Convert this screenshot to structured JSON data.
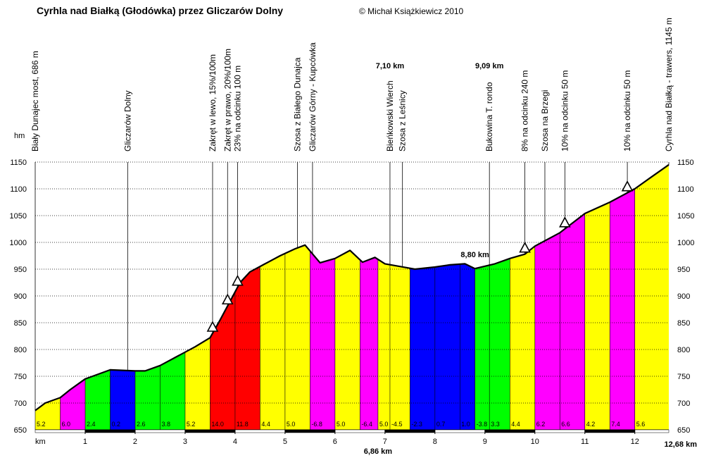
{
  "chart_data": {
    "type": "area",
    "title": "Cyrhla nad Białką (Głodówka) przez Gliczarów Dolny",
    "copyright": "© Michał Książkiewicz 2010",
    "ylabel": "hm",
    "xlabel": "km",
    "xlim": [
      0,
      12.68
    ],
    "ylim": [
      650,
      1150
    ],
    "yticks": [
      "650",
      "700",
      "750",
      "800",
      "850",
      "900",
      "950",
      "1000",
      "1050",
      "1100",
      "1150"
    ],
    "xticks": [
      "1",
      "2",
      "3",
      "4",
      "5",
      "6",
      "7",
      "8",
      "9",
      "10",
      "11",
      "12"
    ],
    "total_distance_label": "12,68 km",
    "profile_x": [
      0,
      0.2,
      0.5,
      0.7,
      1.0,
      1.5,
      2.0,
      2.2,
      2.5,
      2.8,
      3.2,
      3.5,
      3.7,
      3.9,
      4.1,
      4.3,
      4.6,
      4.9,
      5.2,
      5.4,
      5.7,
      6.0,
      6.3,
      6.55,
      6.8,
      7.0,
      7.3,
      7.6,
      8.0,
      8.3,
      8.6,
      8.8,
      9.2,
      9.5,
      9.8,
      10.0,
      10.5,
      11.0,
      11.5,
      12.0,
      12.3,
      12.68
    ],
    "profile_y": [
      686,
      700,
      710,
      725,
      745,
      762,
      760,
      760,
      770,
      785,
      805,
      822,
      855,
      890,
      925,
      945,
      960,
      975,
      988,
      995,
      962,
      970,
      985,
      963,
      972,
      960,
      955,
      950,
      954,
      958,
      960,
      951,
      960,
      970,
      978,
      993,
      1018,
      1054,
      1075,
      1100,
      1120,
      1145
    ],
    "segments": [
      {
        "start": 0,
        "end": 0.5,
        "color": "#ffff00",
        "grade": "5.2"
      },
      {
        "start": 0.5,
        "end": 1.0,
        "color": "#ff00ff",
        "grade": "6.0"
      },
      {
        "start": 1.0,
        "end": 1.5,
        "color": "#00ff00",
        "grade": "2.4"
      },
      {
        "start": 1.5,
        "end": 2.0,
        "color": "#0000ff",
        "grade": "0.2"
      },
      {
        "start": 2.0,
        "end": 2.5,
        "color": "#00ff00",
        "grade": "2.6"
      },
      {
        "start": 2.5,
        "end": 3.0,
        "color": "#00ff00",
        "grade": "3.8"
      },
      {
        "start": 3.0,
        "end": 3.5,
        "color": "#ffff00",
        "grade": "5.2"
      },
      {
        "start": 3.5,
        "end": 4.0,
        "color": "#ff0000",
        "grade": "14.0"
      },
      {
        "start": 4.0,
        "end": 4.5,
        "color": "#ff0000",
        "grade": "11.8"
      },
      {
        "start": 4.5,
        "end": 5.0,
        "color": "#ffff00",
        "grade": "4.4"
      },
      {
        "start": 5.0,
        "end": 5.5,
        "color": "#ffff00",
        "grade": "5.0"
      },
      {
        "start": 5.5,
        "end": 6.0,
        "color": "#ff00ff",
        "grade": "-6.8"
      },
      {
        "start": 6.0,
        "end": 6.5,
        "color": "#ffff00",
        "grade": "5.0"
      },
      {
        "start": 6.5,
        "end": 6.86,
        "color": "#ff00ff",
        "grade": "-6.4"
      },
      {
        "start": 6.86,
        "end": 7.1,
        "color": "#ffff00",
        "grade": "5.0"
      },
      {
        "start": 7.1,
        "end": 7.5,
        "color": "#ffff00",
        "grade": "-4.5"
      },
      {
        "start": 7.5,
        "end": 8.0,
        "color": "#0000ff",
        "grade": "-2.3"
      },
      {
        "start": 8.0,
        "end": 8.5,
        "color": "#0000ff",
        "grade": "0.7"
      },
      {
        "start": 8.5,
        "end": 8.8,
        "color": "#0000ff",
        "grade": "1.0"
      },
      {
        "start": 8.8,
        "end": 9.09,
        "color": "#00ff00",
        "grade": "-3.8"
      },
      {
        "start": 9.09,
        "end": 9.5,
        "color": "#00ff00",
        "grade": "3.3"
      },
      {
        "start": 9.5,
        "end": 10.0,
        "color": "#ffff00",
        "grade": "4.4"
      },
      {
        "start": 10.0,
        "end": 10.5,
        "color": "#ff00ff",
        "grade": "6.2"
      },
      {
        "start": 10.5,
        "end": 11.0,
        "color": "#ff00ff",
        "grade": "6.6"
      },
      {
        "start": 11.0,
        "end": 11.5,
        "color": "#ffff00",
        "grade": "4.2"
      },
      {
        "start": 11.5,
        "end": 12.0,
        "color": "#ff00ff",
        "grade": "7.4"
      },
      {
        "start": 12.0,
        "end": 12.68,
        "color": "#ffff00",
        "grade": "5.6"
      }
    ],
    "markers": [
      {
        "x": 0.0,
        "label": "Biały Dunajec most, 686 m"
      },
      {
        "x": 1.85,
        "label": "Gliczarów Dolny"
      },
      {
        "x": 3.55,
        "label": "Zakręt w lewo, 15%/100m"
      },
      {
        "x": 3.85,
        "label": "Zakręt w prawo, 20%/100m"
      },
      {
        "x": 4.05,
        "label": "23% na odcinku 100 m"
      },
      {
        "x": 5.25,
        "label": "Szosa z Białego Dunajca"
      },
      {
        "x": 5.55,
        "label": "Gliczarów Górny - Kupcówka"
      },
      {
        "x": 7.1,
        "label": "Bieńkowski Wierch"
      },
      {
        "x": 7.35,
        "label": "Szosa z Leśnicy"
      },
      {
        "x": 9.09,
        "label": "Bukowina T. rondo"
      },
      {
        "x": 9.8,
        "label": "8% na odcinku 240 m"
      },
      {
        "x": 10.2,
        "label": "Szosa na Brzegi"
      },
      {
        "x": 10.6,
        "label": "10% na odcinku 50 m"
      },
      {
        "x": 11.85,
        "label": "10% na odcinku 50 m"
      },
      {
        "x": 12.68,
        "label": "Cyrhla nad Białką - trawers, 1145 m"
      }
    ],
    "steep_markers": [
      3.55,
      3.85,
      4.05,
      9.8,
      10.6,
      11.85
    ],
    "distance_labels": [
      {
        "x": 7.1,
        "label": "7,10 km",
        "where": "top"
      },
      {
        "x": 9.09,
        "label": "9,09 km",
        "where": "top"
      },
      {
        "x": 8.8,
        "label": "8,80 km",
        "where": "inline"
      },
      {
        "x": 6.86,
        "label": "6,86 km",
        "where": "bottom"
      }
    ]
  }
}
